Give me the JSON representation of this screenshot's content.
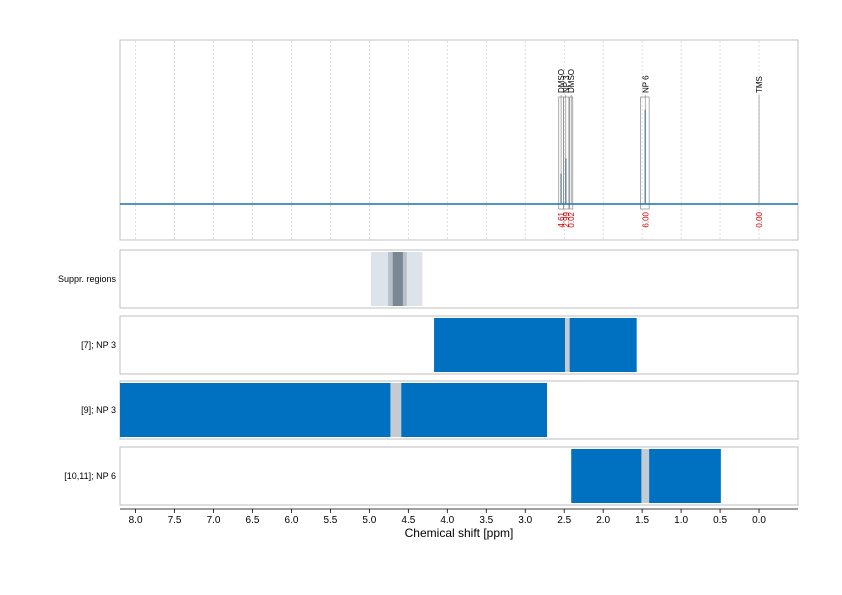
{
  "chart_data": {
    "type": "line",
    "xlabel": "Chemical shift [ppm]",
    "xlim": [
      8.2,
      -0.5
    ],
    "ticks": [
      "8.0",
      "7.5",
      "7.0",
      "6.5",
      "6.0",
      "5.5",
      "5.0",
      "4.5",
      "4.0",
      "3.5",
      "3.0",
      "2.5",
      "2.0",
      "1.5",
      "1.0",
      "0.5",
      "0.0"
    ],
    "tick_values": [
      8.0,
      7.5,
      7.0,
      6.5,
      6.0,
      5.5,
      5.0,
      4.5,
      4.0,
      3.5,
      3.0,
      2.5,
      2.0,
      1.5,
      1.0,
      0.5,
      0.0
    ],
    "grid": true,
    "colors": {
      "spectrum": "#1f6fae",
      "region": "#0070c0",
      "gap": "#c4cbd3",
      "suppr_outer": "#dde3ea",
      "suppr_mid": "#b8c1ca",
      "suppr_inner": "#7a8893",
      "integral": "#cc0000",
      "peak_box": "#888888"
    },
    "peaks": [
      {
        "label": "DMSO",
        "ppm": 2.54,
        "integral": "4.61",
        "height": 0.2,
        "box": [
          2.57,
          2.51
        ]
      },
      {
        "label": "NP 3",
        "ppm": 2.48,
        "integral": "2.99",
        "height": 0.3,
        "box": [
          2.51,
          2.44
        ]
      },
      {
        "label": "DMSO",
        "ppm": 2.41,
        "integral": "0.02",
        "height": 0.0,
        "box": [
          2.43,
          2.39
        ]
      },
      {
        "label": "NP 6",
        "ppm": 1.46,
        "integral": "6.00",
        "height": 0.62,
        "box": [
          1.52,
          1.41
        ]
      },
      {
        "label": "TMS",
        "ppm": 0.0,
        "integral": "0.00",
        "height": 0.0,
        "box": null
      }
    ],
    "panels": [
      {
        "label": "Suppr. regions",
        "kind": "suppr",
        "outer": [
          4.98,
          4.32
        ],
        "mid": [
          4.76,
          4.52
        ],
        "inner": [
          4.7,
          4.57
        ]
      },
      {
        "label": "[7]; NP 3",
        "kind": "region",
        "range": [
          4.17,
          1.57
        ],
        "gap": [
          2.49,
          2.43
        ]
      },
      {
        "label": "[9]; NP 3",
        "kind": "region",
        "range": [
          8.2,
          2.72
        ],
        "gap": [
          4.73,
          4.59
        ]
      },
      {
        "label": "[10,11]; NP 6",
        "kind": "region",
        "range": [
          2.41,
          0.49
        ],
        "gap": [
          1.51,
          1.41
        ]
      }
    ]
  }
}
